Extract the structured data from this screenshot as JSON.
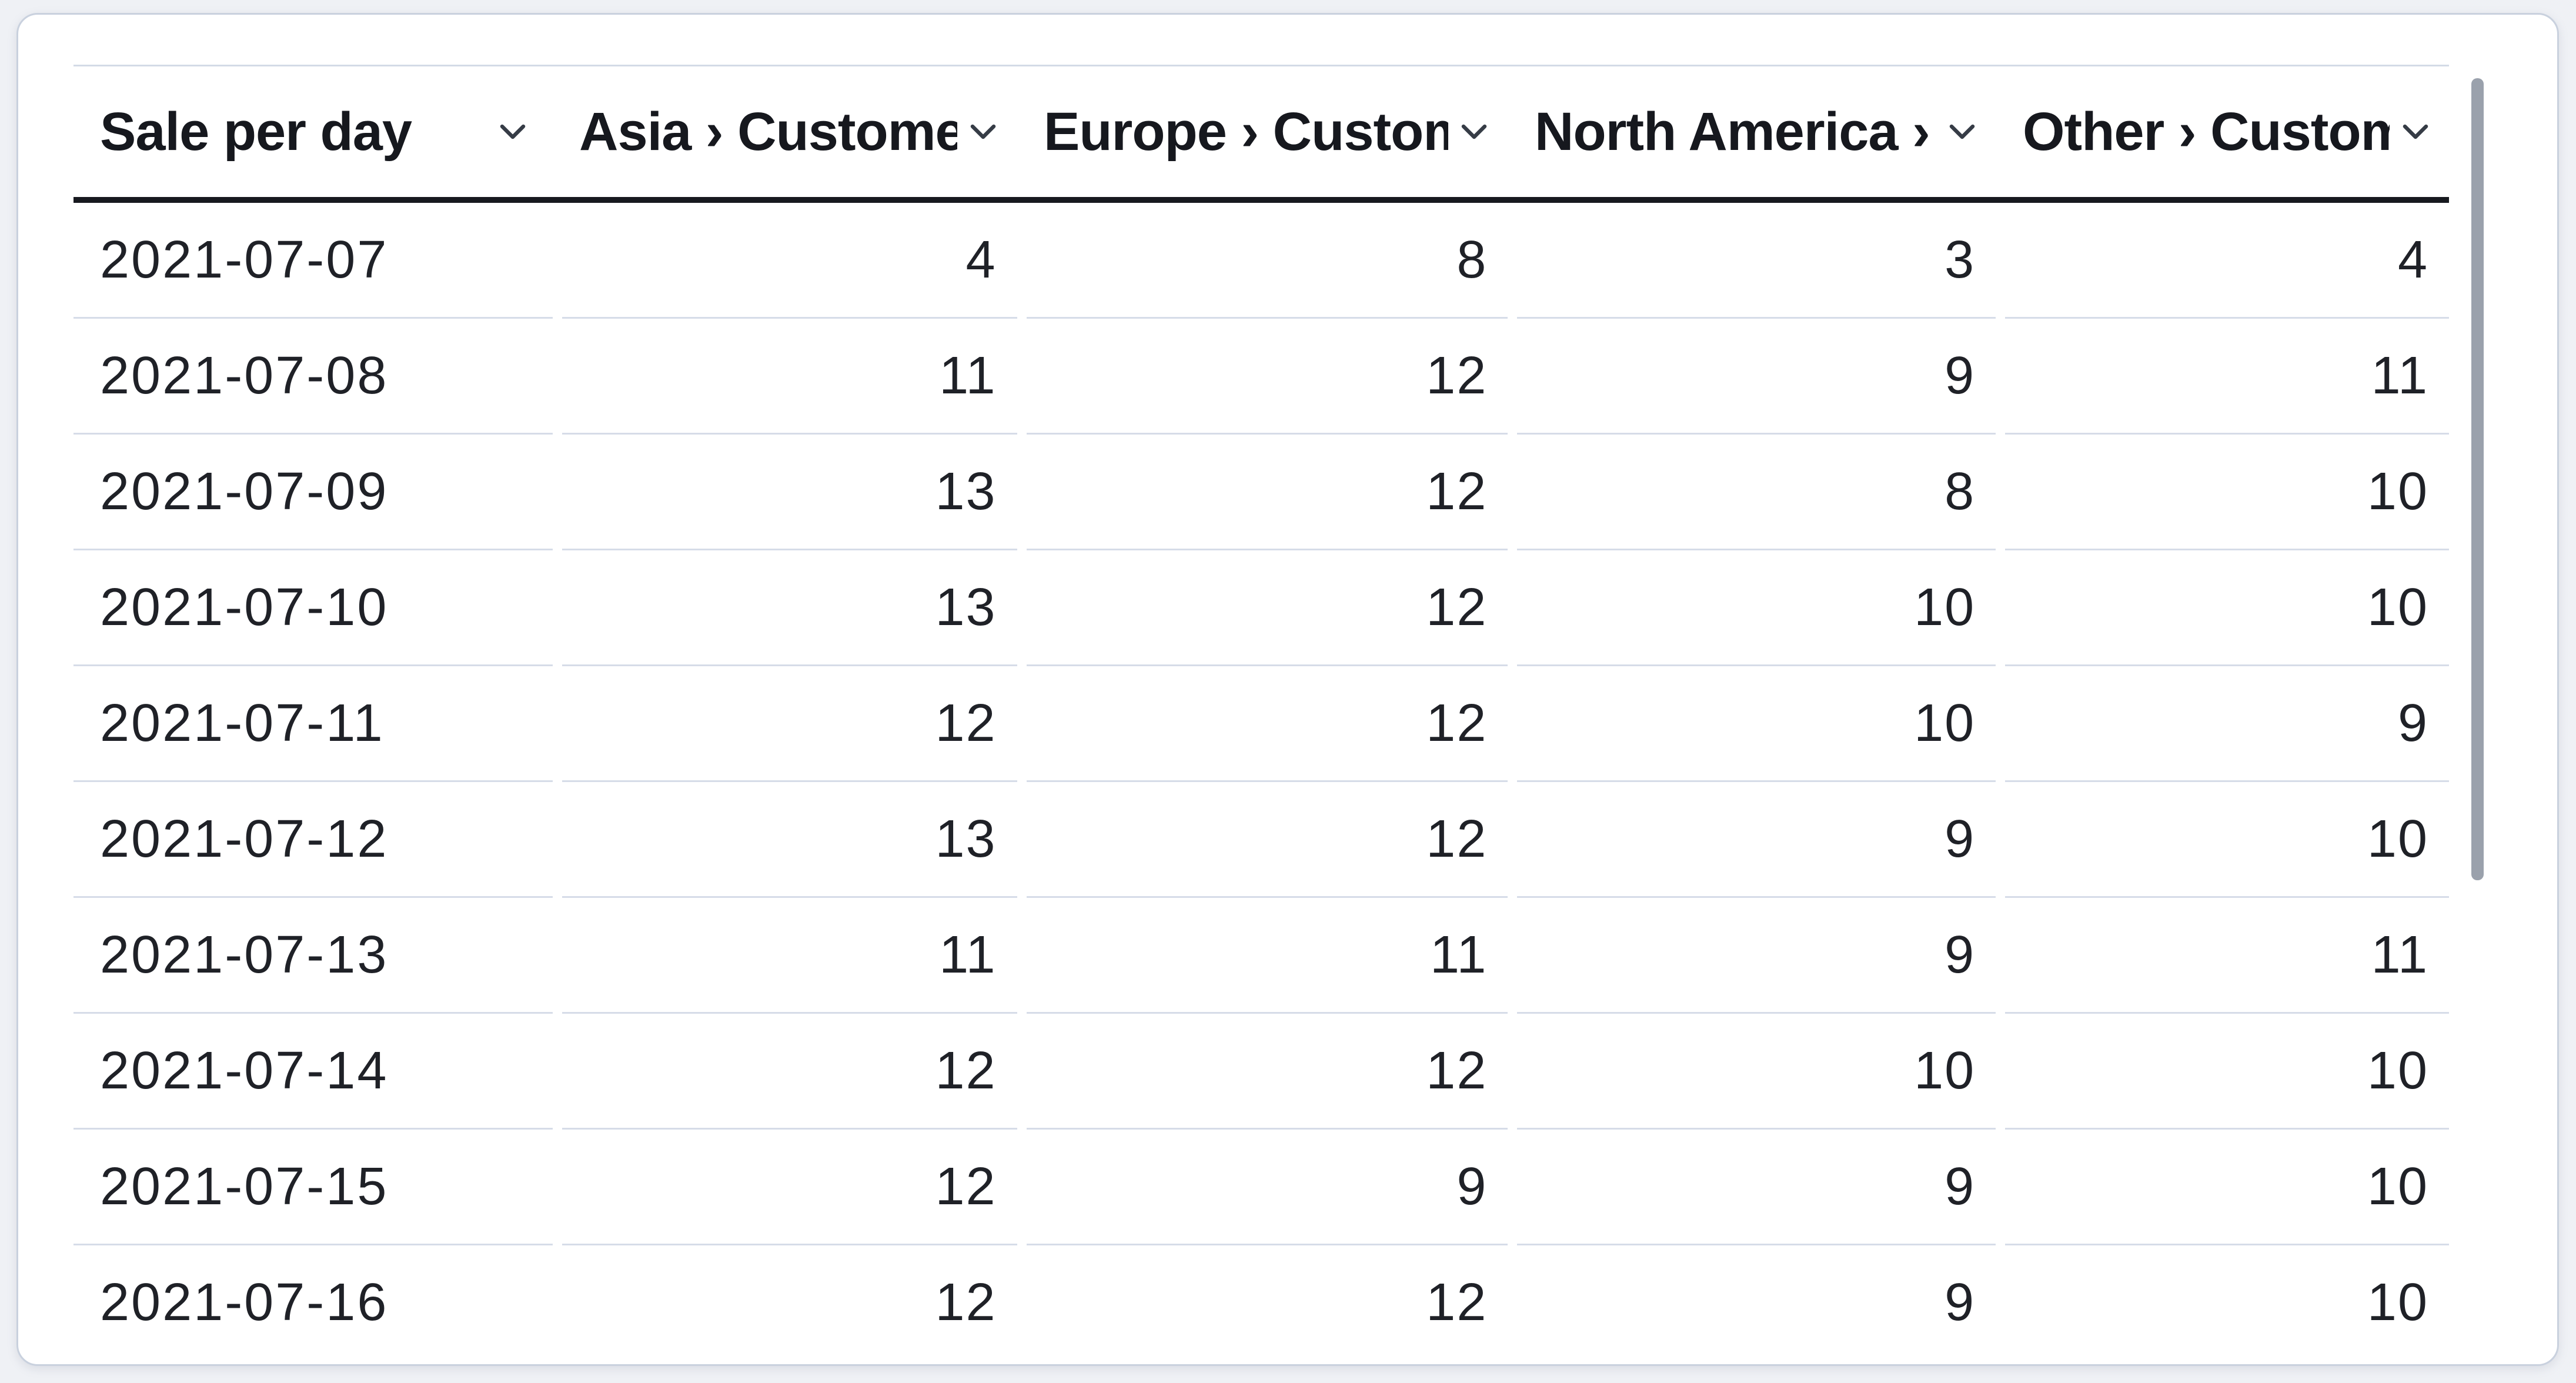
{
  "table": {
    "title_column": "Sale per day",
    "columns": [
      {
        "label": "Sale per day",
        "align": "left"
      },
      {
        "label": "Asia › Customers",
        "align": "right"
      },
      {
        "label": "Europe › Customers",
        "align": "right"
      },
      {
        "label": "North America › Customers",
        "align": "right"
      },
      {
        "label": "Other › Customers",
        "align": "right"
      }
    ],
    "rows": [
      {
        "date": "2021-07-07",
        "values": [
          "4",
          "8",
          "3",
          "4"
        ]
      },
      {
        "date": "2021-07-08",
        "values": [
          "11",
          "12",
          "9",
          "11"
        ]
      },
      {
        "date": "2021-07-09",
        "values": [
          "13",
          "12",
          "8",
          "10"
        ]
      },
      {
        "date": "2021-07-10",
        "values": [
          "13",
          "12",
          "10",
          "10"
        ]
      },
      {
        "date": "2021-07-11",
        "values": [
          "12",
          "12",
          "10",
          "9"
        ]
      },
      {
        "date": "2021-07-12",
        "values": [
          "13",
          "12",
          "9",
          "10"
        ]
      },
      {
        "date": "2021-07-13",
        "values": [
          "11",
          "11",
          "9",
          "11"
        ]
      },
      {
        "date": "2021-07-14",
        "values": [
          "12",
          "12",
          "10",
          "10"
        ]
      },
      {
        "date": "2021-07-15",
        "values": [
          "12",
          "9",
          "9",
          "10"
        ]
      },
      {
        "date": "2021-07-16",
        "values": [
          "12",
          "12",
          "9",
          "10"
        ]
      }
    ]
  },
  "icons": {
    "sort_chevron": "chevron-down"
  },
  "colors": {
    "page_background": "#eff1f5",
    "card_background": "#ffffff",
    "card_border": "#c9d1de",
    "header_text": "#16181e",
    "cell_text": "#1f2127",
    "header_underline": "#17191f",
    "row_separator": "#d6dce8",
    "scrollbar_thumb": "#9aa1ac"
  }
}
